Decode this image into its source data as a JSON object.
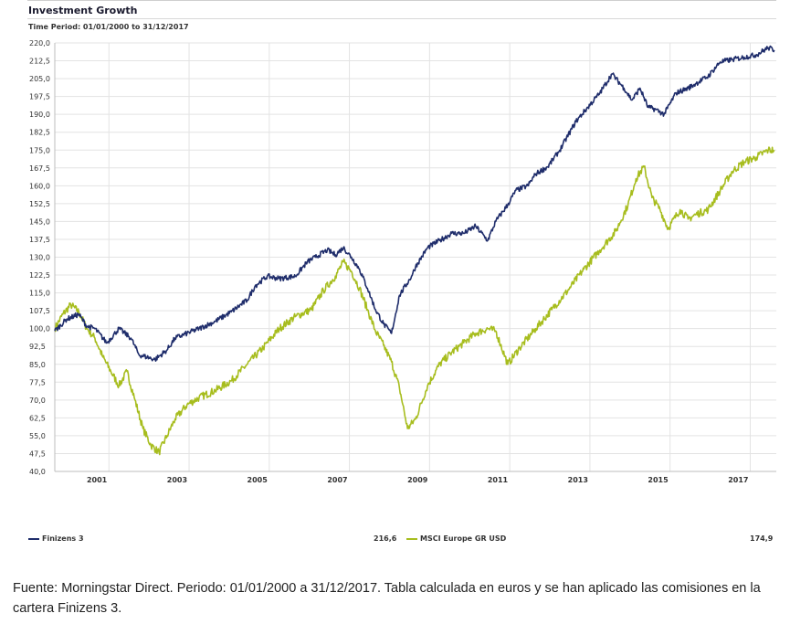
{
  "chart_data": {
    "type": "line",
    "title": "Investment Growth",
    "subtitle": "Time Period: 01/01/2000 to 31/12/2017",
    "ylim": [
      40.0,
      220.0
    ],
    "yticks": [
      "220,0",
      "212,5",
      "205,0",
      "197,5",
      "190,0",
      "182,5",
      "175,0",
      "167,5",
      "160,0",
      "152,5",
      "145,0",
      "137,5",
      "130,0",
      "122,5",
      "115,0",
      "107,5",
      "100,0",
      "92,5",
      "85,0",
      "77,5",
      "70,0",
      "62,5",
      "55,0",
      "47,5",
      "40,0"
    ],
    "xlim": [
      2000.0,
      2018.0
    ],
    "xticks": [
      "2001",
      "2003",
      "2005",
      "2007",
      "2009",
      "2011",
      "2013",
      "2015",
      "2017"
    ],
    "series": [
      {
        "name": "Finizens 3",
        "color": "#1f2d6b",
        "final_value": "216,6",
        "x": [
          2000.0,
          2000.3,
          2000.6,
          2000.8,
          2001.0,
          2001.3,
          2001.6,
          2001.9,
          2002.1,
          2002.3,
          2002.5,
          2002.8,
          2003.0,
          2003.3,
          2003.6,
          2004.0,
          2004.4,
          2004.8,
          2005.0,
          2005.3,
          2005.6,
          2006.0,
          2006.3,
          2006.5,
          2006.8,
          2007.0,
          2007.2,
          2007.4,
          2007.6,
          2007.8,
          2008.0,
          2008.2,
          2008.4,
          2008.6,
          2008.9,
          2009.0,
          2009.3,
          2009.6,
          2009.9,
          2010.2,
          2010.5,
          2010.8,
          2011.0,
          2011.3,
          2011.5,
          2011.8,
          2012.0,
          2012.3,
          2012.6,
          2013.0,
          2013.3,
          2013.6,
          2013.9,
          2014.2,
          2014.4,
          2014.6,
          2014.8,
          2015.0,
          2015.2,
          2015.5,
          2015.8,
          2016.0,
          2016.3,
          2016.6,
          2016.9,
          2017.2,
          2017.5,
          2017.8,
          2017.95
        ],
        "y": [
          99,
          104,
          106,
          101,
          100,
          94,
          100,
          96,
          89,
          88,
          87,
          91,
          96,
          98,
          100,
          103,
          107,
          112,
          118,
          122,
          121,
          122,
          128,
          130,
          133,
          131,
          134,
          130,
          125,
          117,
          108,
          102,
          98,
          114,
          122,
          126,
          134,
          137,
          140,
          140,
          143,
          137,
          145,
          152,
          158,
          160,
          165,
          168,
          175,
          187,
          193,
          199,
          207,
          201,
          196,
          201,
          193,
          192,
          190,
          199,
          201,
          203,
          206,
          212,
          213,
          214,
          215,
          218,
          217
        ]
      },
      {
        "name": "MSCI Europe GR USD",
        "color": "#a7bd1e",
        "final_value": "174,9",
        "x": [
          2000.0,
          2000.2,
          2000.4,
          2000.6,
          2000.8,
          2001.0,
          2001.2,
          2001.4,
          2001.6,
          2001.8,
          2002.0,
          2002.2,
          2002.4,
          2002.6,
          2002.8,
          2003.0,
          2003.3,
          2003.6,
          2004.0,
          2004.4,
          2004.8,
          2005.2,
          2005.6,
          2006.0,
          2006.4,
          2006.7,
          2007.0,
          2007.2,
          2007.4,
          2007.6,
          2007.8,
          2008.0,
          2008.2,
          2008.4,
          2008.6,
          2008.8,
          2009.0,
          2009.3,
          2009.6,
          2009.9,
          2010.2,
          2010.5,
          2010.8,
          2011.0,
          2011.3,
          2011.6,
          2012.0,
          2012.4,
          2012.8,
          2013.2,
          2013.6,
          2014.0,
          2014.3,
          2014.5,
          2014.7,
          2014.9,
          2015.1,
          2015.3,
          2015.6,
          2015.8,
          2016.0,
          2016.3,
          2016.6,
          2016.9,
          2017.2,
          2017.5,
          2017.8,
          2017.95
        ],
        "y": [
          100,
          106,
          110,
          107,
          100,
          96,
          88,
          82,
          76,
          82,
          70,
          58,
          51,
          48,
          55,
          62,
          68,
          71,
          74,
          78,
          85,
          92,
          100,
          105,
          108,
          116,
          122,
          128,
          124,
          117,
          108,
          99,
          93,
          86,
          75,
          58,
          62,
          76,
          85,
          90,
          94,
          98,
          100,
          99,
          85,
          92,
          100,
          108,
          116,
          125,
          133,
          141,
          152,
          163,
          168,
          155,
          150,
          142,
          150,
          146,
          148,
          150,
          158,
          166,
          170,
          172,
          175,
          175
        ]
      }
    ]
  },
  "source_note": "Fuente: Morningstar Direct. Periodo: 01/01/2000 a 31/12/2017.  Tabla calculada en euros y se han aplicado las comisiones en la cartera Finizens 3."
}
